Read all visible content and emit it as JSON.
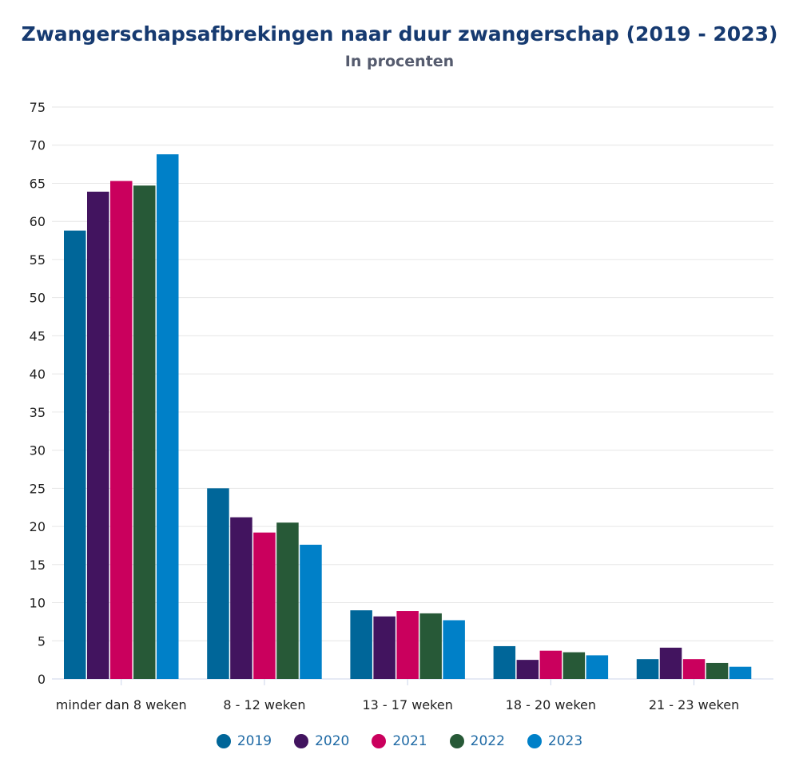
{
  "chart_data": {
    "type": "bar",
    "title": "Zwangerschapsafbrekingen naar duur zwangerschap (2019 - 2023)",
    "subtitle": "In procenten",
    "xlabel": "",
    "ylabel": "",
    "ylim": [
      0,
      75
    ],
    "yticks": [
      0,
      5,
      10,
      15,
      20,
      25,
      30,
      35,
      40,
      45,
      50,
      55,
      60,
      65,
      70,
      75
    ],
    "grid": true,
    "legend_position": "bottom",
    "categories": [
      "minder dan 8 weken",
      "8 - 12 weken",
      "13 - 17 weken",
      "18 - 20 weken",
      "21 - 23 weken"
    ],
    "series": [
      {
        "name": "2019",
        "color": "#006699",
        "values": [
          58.8,
          25.0,
          9.0,
          4.3,
          2.6
        ]
      },
      {
        "name": "2020",
        "color": "#42145f",
        "values": [
          63.9,
          21.2,
          8.2,
          2.5,
          4.1
        ]
      },
      {
        "name": "2021",
        "color": "#ca005d",
        "values": [
          65.3,
          19.2,
          8.9,
          3.7,
          2.6
        ]
      },
      {
        "name": "2022",
        "color": "#275937",
        "values": [
          64.7,
          20.5,
          8.6,
          3.5,
          2.1
        ]
      },
      {
        "name": "2023",
        "color": "#0080c8",
        "values": [
          68.8,
          17.6,
          7.7,
          3.1,
          1.6
        ]
      }
    ]
  }
}
